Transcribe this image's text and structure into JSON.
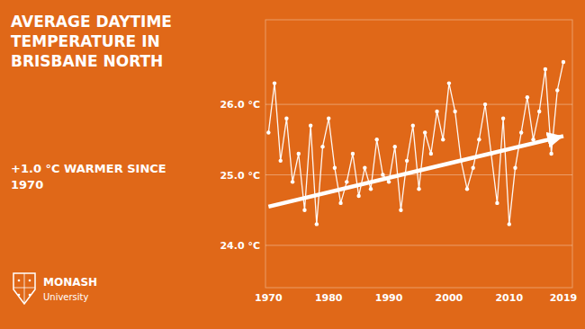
{
  "chart_data": {
    "type": "line",
    "title": "AVERAGE DAYTIME\nTEMPERATURE IN\nBRISBANE NORTH",
    "subtitle": "+1.0 °C WARMER SINCE\n1970",
    "annotations": [
      "MONASH",
      "University"
    ],
    "x": [
      1970,
      1971,
      1972,
      1973,
      1974,
      1975,
      1976,
      1977,
      1978,
      1979,
      1980,
      1981,
      1982,
      1983,
      1984,
      1985,
      1986,
      1987,
      1988,
      1989,
      1990,
      1991,
      1992,
      1993,
      1994,
      1995,
      1996,
      1997,
      1998,
      1999,
      2000,
      2001,
      2002,
      2003,
      2004,
      2005,
      2006,
      2007,
      2008,
      2009,
      2010,
      2011,
      2012,
      2013,
      2014,
      2015,
      2016,
      2017,
      2018,
      2019
    ],
    "values": [
      25.6,
      26.3,
      25.2,
      25.8,
      24.9,
      25.3,
      24.5,
      25.7,
      24.3,
      25.4,
      25.8,
      25.1,
      24.6,
      24.9,
      25.3,
      24.7,
      25.1,
      24.8,
      25.5,
      25.0,
      24.9,
      25.4,
      24.5,
      25.2,
      25.7,
      24.8,
      25.6,
      25.3,
      25.9,
      25.5,
      26.3,
      25.9,
      25.2,
      24.8,
      25.1,
      25.5,
      26.0,
      25.3,
      24.6,
      25.8,
      24.3,
      25.1,
      25.6,
      26.1,
      25.5,
      25.9,
      26.5,
      25.3,
      26.2,
      26.6
    ],
    "color": "#FFFFFF",
    "marker": "circle",
    "trend": {
      "x": [
        1970,
        2019
      ],
      "values": [
        24.55,
        25.55
      ]
    },
    "xlim": [
      1969.5,
      2020.5
    ],
    "xticks": [
      1970,
      1980,
      1990,
      2000,
      2010,
      2019
    ],
    "ylim": [
      23.4,
      27.2
    ],
    "yticks": [
      {
        "value": 24.0,
        "label": "24.0 °C"
      },
      {
        "value": 25.0,
        "label": "25.0 °C"
      },
      {
        "value": 26.0,
        "label": "26.0 °C"
      }
    ],
    "grid": true
  }
}
